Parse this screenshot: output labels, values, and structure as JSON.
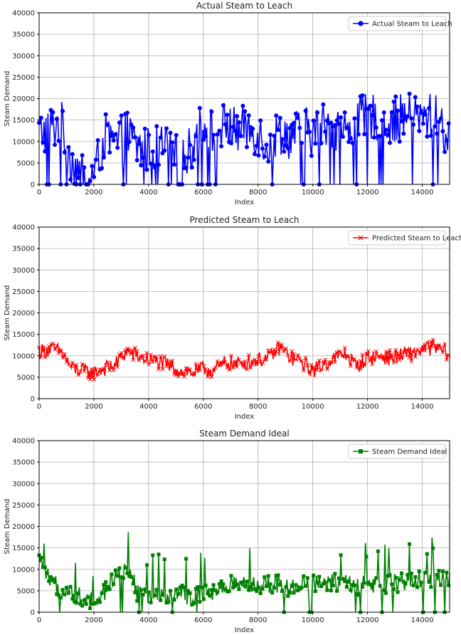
{
  "colors": {
    "actual": "#0000ff",
    "predicted": "#ff0000",
    "ideal": "#008000"
  },
  "chart_data": [
    {
      "type": "line",
      "title": "Actual Steam to Leach",
      "xlabel": "Index",
      "ylabel": "Steam Demand",
      "xlim": [
        0,
        15000
      ],
      "ylim": [
        0,
        40000
      ],
      "xticks": [
        0,
        2000,
        4000,
        6000,
        8000,
        10000,
        12000,
        14000
      ],
      "yticks": [
        0,
        5000,
        10000,
        15000,
        20000,
        25000,
        30000,
        35000,
        40000
      ],
      "grid": true,
      "legend_position": "top-right",
      "series": [
        {
          "name": "Actual Steam to Leach",
          "color": "#0000ff",
          "marker": "circle",
          "x": [
            0,
            400,
            800,
            1200,
            1600,
            2000,
            2400,
            2800,
            3200,
            3600,
            4000,
            4400,
            4800,
            5200,
            5600,
            6000,
            6400,
            6800,
            7200,
            7600,
            8000,
            8400,
            8800,
            9200,
            9600,
            10000,
            10400,
            10800,
            11200,
            11600,
            12000,
            12400,
            12800,
            13200,
            13600,
            14000,
            14400,
            14800,
            15000
          ],
          "y": [
            12000,
            13000,
            14500,
            5000,
            3000,
            2000,
            11000,
            9000,
            12000,
            8500,
            8000,
            9000,
            7500,
            5000,
            9000,
            15000,
            12000,
            14000,
            12500,
            13000,
            12000,
            9000,
            12500,
            11000,
            13000,
            12000,
            14000,
            13500,
            12000,
            14500,
            16000,
            15500,
            14500,
            15500,
            16000,
            15000,
            16500,
            13000,
            9000
          ]
        }
      ]
    },
    {
      "type": "line",
      "title": "Predicted Steam to Leach",
      "xlabel": "Index",
      "ylabel": "Steam Demand",
      "xlim": [
        0,
        15000
      ],
      "ylim": [
        0,
        40000
      ],
      "xticks": [
        0,
        2000,
        4000,
        6000,
        8000,
        10000,
        12000,
        14000
      ],
      "yticks": [
        0,
        5000,
        10000,
        15000,
        20000,
        25000,
        30000,
        35000,
        40000
      ],
      "grid": true,
      "legend_position": "top-right",
      "series": [
        {
          "name": "Predicted Steam to Leach",
          "color": "#ff0000",
          "marker": "x",
          "x": [
            0,
            400,
            800,
            1200,
            1600,
            2000,
            2400,
            2800,
            3200,
            3600,
            4000,
            4400,
            4800,
            5200,
            5600,
            6000,
            6400,
            6800,
            7200,
            7600,
            8000,
            8400,
            8800,
            9200,
            9600,
            10000,
            10400,
            10800,
            11200,
            11600,
            12000,
            12400,
            12800,
            13200,
            13600,
            14000,
            14400,
            14800,
            15000
          ],
          "y": [
            11000,
            11500,
            11000,
            7000,
            6500,
            6000,
            7000,
            8000,
            11000,
            10000,
            9000,
            8500,
            7500,
            6500,
            6000,
            7000,
            6500,
            8500,
            8000,
            8500,
            9000,
            9500,
            12000,
            9500,
            8500,
            6500,
            8000,
            9500,
            10500,
            7500,
            9500,
            10000,
            9500,
            10000,
            10500,
            11500,
            12000,
            11000,
            10500
          ]
        }
      ]
    },
    {
      "type": "line",
      "title": "Steam Demand Ideal",
      "xlabel": "Index",
      "ylabel": "Steam Demand",
      "xlim": [
        0,
        15000
      ],
      "ylim": [
        0,
        40000
      ],
      "xticks": [
        0,
        2000,
        4000,
        6000,
        8000,
        10000,
        12000,
        14000
      ],
      "yticks": [
        0,
        5000,
        10000,
        15000,
        20000,
        25000,
        30000,
        35000,
        40000
      ],
      "grid": true,
      "legend_position": "top-right",
      "series": [
        {
          "name": "Steam Demand Ideal",
          "color": "#008000",
          "marker": "square",
          "x": [
            0,
            400,
            800,
            1200,
            1600,
            2000,
            2400,
            2800,
            3200,
            3600,
            4000,
            4400,
            4800,
            5200,
            5600,
            6000,
            6400,
            6800,
            7200,
            7600,
            8000,
            8400,
            8800,
            9200,
            9600,
            10000,
            10400,
            10800,
            11200,
            11600,
            12000,
            12400,
            12800,
            13200,
            13600,
            14000,
            14400,
            14800,
            15000
          ],
          "y": [
            12000,
            7000,
            5500,
            5000,
            3000,
            2500,
            5000,
            8000,
            11000,
            4500,
            3500,
            3500,
            4000,
            4500,
            3500,
            4000,
            4500,
            6500,
            6500,
            6000,
            6000,
            6500,
            6500,
            5500,
            6500,
            6500,
            7000,
            7000,
            6500,
            6000,
            6500,
            6500,
            6500,
            7000,
            7000,
            7500,
            8000,
            7500,
            7000
          ]
        }
      ]
    }
  ]
}
